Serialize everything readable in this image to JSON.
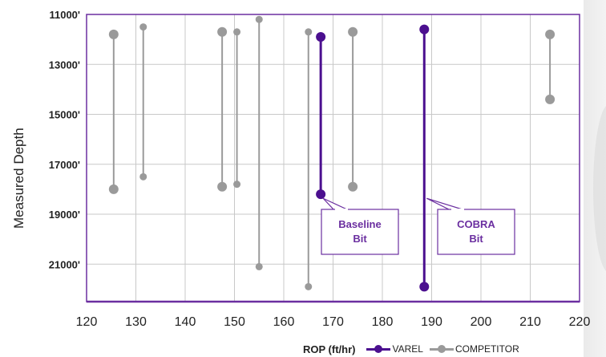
{
  "chart_data": {
    "type": "range-dot",
    "ylabel": "Measured Depth",
    "xlabel": "ROP (ft/hr)",
    "xlim": [
      120,
      220
    ],
    "ylim": [
      11000,
      22500
    ],
    "y_inverted": true,
    "x_ticks": [
      "120",
      "130",
      "140",
      "150",
      "160",
      "170",
      "180",
      "190",
      "200",
      "210",
      "220"
    ],
    "y_ticks": [
      "11000'",
      "13000'",
      "15000'",
      "17000'",
      "19000'",
      "21000'"
    ],
    "y_tick_values": [
      11000,
      13000,
      15000,
      17000,
      19000,
      21000
    ],
    "grid": true,
    "colors": {
      "varel": "#4b0f8f",
      "competitor": "#9a9a9a",
      "axis": "#6b2fa0",
      "grid": "#c8c8c8"
    },
    "series": [
      {
        "name": "VAREL",
        "ranges": [
          {
            "x": 167.5,
            "y_start": 11900,
            "y_end": 18200,
            "big_start": true,
            "big_end": true
          },
          {
            "x": 188.5,
            "y_start": 11600,
            "y_end": 21900,
            "big_start": true,
            "big_end": true
          }
        ]
      },
      {
        "name": "COMPETITOR",
        "ranges": [
          {
            "x": 125.5,
            "y_start": 11800,
            "y_end": 18000,
            "big_start": true,
            "big_end": true
          },
          {
            "x": 131.5,
            "y_start": 11500,
            "y_end": 17500,
            "big_start": false,
            "big_end": false
          },
          {
            "x": 147.5,
            "y_start": 11700,
            "y_end": 17900,
            "big_start": true,
            "big_end": true
          },
          {
            "x": 150.5,
            "y_start": 11700,
            "y_end": 17800,
            "big_start": false,
            "big_end": false
          },
          {
            "x": 155.0,
            "y_start": 11200,
            "y_end": 21100,
            "big_start": false,
            "big_end": false
          },
          {
            "x": 165.0,
            "y_start": 11700,
            "y_end": 21900,
            "big_start": false,
            "big_end": false
          },
          {
            "x": 174.0,
            "y_start": 11700,
            "y_end": 17900,
            "big_start": true,
            "big_end": true
          },
          {
            "x": 214.0,
            "y_start": 11800,
            "y_end": 14400,
            "big_start": true,
            "big_end": true
          }
        ]
      }
    ],
    "annotations": [
      {
        "id": "baseline",
        "line1": "Baseline",
        "line2": "Bit",
        "target_x": 167.5,
        "target_y": 18300
      },
      {
        "id": "cobra",
        "line1": "COBRA",
        "line2": "Bit",
        "target_x": 188.5,
        "target_y": 18300
      }
    ],
    "legend": {
      "title": "ROP (ft/hr)",
      "placement": "bottom-right",
      "items": [
        "VAREL",
        "COMPETITOR"
      ]
    }
  }
}
